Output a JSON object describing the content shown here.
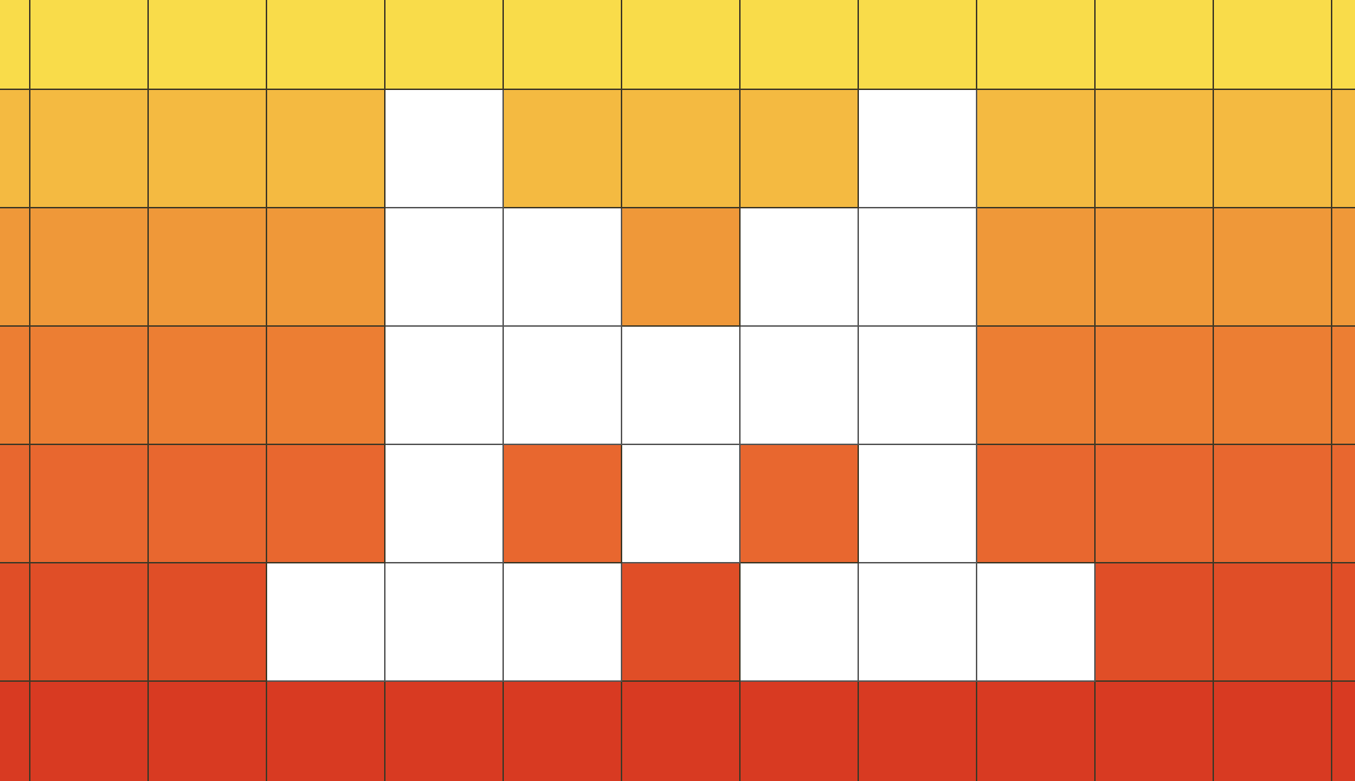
{
  "board": {
    "row_colors": [
      "#F9DC4A",
      "#F4BA41",
      "#EF9839",
      "#EC7E33",
      "#E8672F",
      "#E04E27",
      "#D83A22"
    ],
    "empty_color": "#FFFFFF",
    "grid_line_color": "#3F3826",
    "cells": [
      "1111111111111",
      "1111011101111",
      "1111001001111",
      "1111000001111",
      "1111010101111",
      "1110001000111",
      "1111111111111"
    ]
  }
}
